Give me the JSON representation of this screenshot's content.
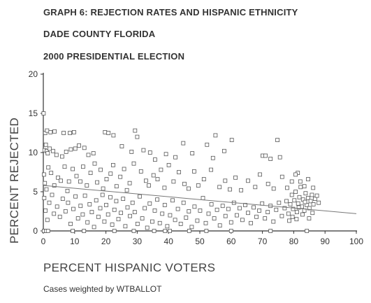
{
  "titles": {
    "line1": "GRAPH 6: REJECTION RATES AND HISPANIC ETHNICITY",
    "line2": "DADE COUNTY FLORIDA",
    "line3": "2000 PRESIDENTIAL ELECTION"
  },
  "note": "Cases weighted by WTBALLOT",
  "chart_data": {
    "type": "scatter",
    "title": "GRAPH 6: REJECTION RATES AND HISPANIC ETHNICITY",
    "xlabel": "PERCENT HISPANIC VOTERS",
    "ylabel": "PERCENT REJECTED",
    "xlim": [
      0,
      100
    ],
    "ylim": [
      0,
      20
    ],
    "x_ticks": [
      "0",
      "10",
      "20",
      "30",
      "40",
      "50",
      "60",
      "70",
      "80",
      "90",
      "100"
    ],
    "y_ticks": [
      "0",
      "5",
      "10",
      "15",
      "20"
    ],
    "grid": false,
    "marker": "open-square",
    "marker_color": "#555555",
    "fit_line": {
      "x": [
        0,
        100
      ],
      "y": [
        5.8,
        2.2
      ],
      "color": "#777777"
    },
    "points": [
      [
        0.1,
        15.0
      ],
      [
        0.6,
        12.5
      ],
      [
        1.2,
        12.8
      ],
      [
        2.3,
        12.6
      ],
      [
        3.6,
        12.7
      ],
      [
        6.5,
        12.5
      ],
      [
        8.5,
        12.5
      ],
      [
        9.8,
        12.6
      ],
      [
        0.4,
        10.3
      ],
      [
        0.8,
        11.0
      ],
      [
        1.1,
        10.2
      ],
      [
        1.4,
        9.9
      ],
      [
        2.0,
        10.5
      ],
      [
        3.1,
        10.2
      ],
      [
        4.2,
        9.7
      ],
      [
        6.0,
        9.5
      ],
      [
        7.3,
        10.1
      ],
      [
        8.8,
        10.4
      ],
      [
        10.2,
        10.5
      ],
      [
        11.4,
        10.9
      ],
      [
        13.1,
        10.6
      ],
      [
        14.4,
        9.7
      ],
      [
        16.0,
        9.9
      ],
      [
        19.7,
        12.6
      ],
      [
        20.8,
        12.5
      ],
      [
        22.4,
        12.2
      ],
      [
        25.1,
        10.8
      ],
      [
        28.2,
        10.1
      ],
      [
        29.3,
        12.8
      ],
      [
        30.0,
        12.0
      ],
      [
        32.0,
        10.3
      ],
      [
        34.1,
        10.0
      ],
      [
        35.7,
        9.1
      ],
      [
        39.2,
        9.8
      ],
      [
        42.2,
        9.4
      ],
      [
        44.7,
        11.2
      ],
      [
        47.6,
        9.9
      ],
      [
        52.3,
        11.0
      ],
      [
        54.2,
        9.3
      ],
      [
        55.0,
        12.2
      ],
      [
        57.8,
        10.2
      ],
      [
        60.2,
        11.6
      ],
      [
        70.1,
        9.6
      ],
      [
        71.0,
        9.6
      ],
      [
        72.6,
        9.2
      ],
      [
        74.8,
        11.6
      ],
      [
        75.6,
        9.4
      ],
      [
        81.3,
        7.4
      ],
      [
        0.2,
        7.2
      ],
      [
        0.5,
        6.1
      ],
      [
        1.0,
        5.3
      ],
      [
        1.6,
        8.1
      ],
      [
        2.5,
        7.4
      ],
      [
        3.5,
        5.8
      ],
      [
        4.7,
        6.8
      ],
      [
        5.6,
        6.4
      ],
      [
        6.8,
        8.2
      ],
      [
        7.7,
        5.1
      ],
      [
        8.2,
        6.3
      ],
      [
        9.4,
        7.9
      ],
      [
        10.6,
        7.0
      ],
      [
        11.8,
        6.3
      ],
      [
        12.7,
        8.2
      ],
      [
        13.9,
        5.8
      ],
      [
        15.1,
        7.4
      ],
      [
        16.4,
        8.6
      ],
      [
        17.2,
        6.2
      ],
      [
        18.3,
        7.8
      ],
      [
        19.1,
        5.4
      ],
      [
        20.2,
        6.6
      ],
      [
        21.5,
        7.3
      ],
      [
        22.3,
        8.4
      ],
      [
        23.4,
        5.7
      ],
      [
        24.6,
        6.9
      ],
      [
        25.8,
        7.9
      ],
      [
        26.7,
        5.2
      ],
      [
        27.6,
        6.1
      ],
      [
        28.9,
        8.6
      ],
      [
        31.2,
        7.6
      ],
      [
        32.8,
        6.4
      ],
      [
        33.7,
        5.8
      ],
      [
        35.2,
        7.1
      ],
      [
        36.5,
        6.6
      ],
      [
        37.6,
        7.8
      ],
      [
        38.7,
        5.5
      ],
      [
        40.1,
        8.4
      ],
      [
        41.6,
        6.3
      ],
      [
        43.3,
        7.5
      ],
      [
        45.1,
        6.0
      ],
      [
        46.4,
        5.4
      ],
      [
        48.2,
        7.6
      ],
      [
        49.5,
        5.8
      ],
      [
        51.3,
        6.6
      ],
      [
        53.6,
        7.8
      ],
      [
        56.3,
        5.6
      ],
      [
        58.1,
        6.4
      ],
      [
        59.6,
        5.3
      ],
      [
        61.4,
        6.8
      ],
      [
        63.2,
        5.2
      ],
      [
        65.4,
        6.4
      ],
      [
        67.7,
        5.6
      ],
      [
        69.2,
        7.2
      ],
      [
        71.8,
        6.0
      ],
      [
        73.6,
        5.4
      ],
      [
        76.3,
        6.9
      ],
      [
        77.9,
        5.5
      ],
      [
        79.4,
        6.3
      ],
      [
        80.6,
        7.2
      ],
      [
        82.1,
        6.3
      ],
      [
        83.4,
        5.7
      ],
      [
        84.6,
        6.6
      ],
      [
        86.2,
        5.5
      ],
      [
        0.3,
        4.2
      ],
      [
        0.7,
        2.6
      ],
      [
        1.3,
        1.4
      ],
      [
        1.9,
        3.6
      ],
      [
        2.8,
        4.6
      ],
      [
        3.4,
        2.2
      ],
      [
        4.4,
        3.1
      ],
      [
        5.3,
        1.8
      ],
      [
        6.2,
        4.1
      ],
      [
        7.1,
        2.5
      ],
      [
        7.9,
        3.6
      ],
      [
        8.7,
        0.9
      ],
      [
        9.6,
        2.8
      ],
      [
        10.3,
        4.4
      ],
      [
        11.1,
        1.6
      ],
      [
        11.9,
        3.2
      ],
      [
        12.6,
        2.1
      ],
      [
        13.3,
        4.5
      ],
      [
        14.1,
        1.1
      ],
      [
        14.8,
        3.4
      ],
      [
        15.5,
        2.4
      ],
      [
        16.2,
        0.5
      ],
      [
        16.9,
        3.9
      ],
      [
        17.6,
        1.8
      ],
      [
        18.2,
        2.9
      ],
      [
        18.9,
        4.6
      ],
      [
        19.5,
        1.2
      ],
      [
        20.1,
        3.3
      ],
      [
        20.7,
        2.1
      ],
      [
        21.4,
        4.3
      ],
      [
        22.0,
        0.8
      ],
      [
        22.7,
        2.7
      ],
      [
        23.3,
        3.8
      ],
      [
        24.0,
        1.5
      ],
      [
        24.8,
        2.3
      ],
      [
        25.5,
        4.1
      ],
      [
        26.2,
        0.6
      ],
      [
        26.9,
        3.0
      ],
      [
        27.7,
        1.9
      ],
      [
        28.5,
        3.6
      ],
      [
        29.2,
        2.4
      ],
      [
        30.1,
        0.9
      ],
      [
        30.8,
        4.4
      ],
      [
        31.6,
        1.6
      ],
      [
        32.4,
        2.9
      ],
      [
        33.2,
        0.4
      ],
      [
        34.0,
        3.5
      ],
      [
        34.8,
        1.2
      ],
      [
        35.6,
        2.6
      ],
      [
        36.4,
        4.0
      ],
      [
        37.2,
        1.0
      ],
      [
        38.0,
        2.2
      ],
      [
        38.8,
        3.3
      ],
      [
        39.6,
        0.6
      ],
      [
        40.5,
        2.0
      ],
      [
        41.3,
        3.9
      ],
      [
        42.1,
        1.4
      ],
      [
        43.0,
        2.8
      ],
      [
        43.9,
        0.9
      ],
      [
        44.8,
        3.6
      ],
      [
        45.6,
        1.7
      ],
      [
        46.5,
        2.5
      ],
      [
        47.4,
        0.5
      ],
      [
        48.3,
        3.1
      ],
      [
        49.2,
        1.3
      ],
      [
        50.1,
        2.6
      ],
      [
        51.0,
        4.2
      ],
      [
        51.9,
        1.0
      ],
      [
        52.8,
        2.2
      ],
      [
        53.7,
        3.4
      ],
      [
        54.6,
        1.6
      ],
      [
        55.5,
        2.7
      ],
      [
        56.4,
        0.7
      ],
      [
        57.3,
        3.2
      ],
      [
        58.2,
        1.9
      ],
      [
        59.1,
        2.8
      ],
      [
        60.0,
        1.1
      ],
      [
        60.9,
        3.6
      ],
      [
        61.8,
        2.0
      ],
      [
        62.7,
        2.9
      ],
      [
        63.6,
        1.4
      ],
      [
        64.5,
        3.3
      ],
      [
        65.4,
        2.3
      ],
      [
        66.3,
        1.0
      ],
      [
        67.2,
        3.0
      ],
      [
        68.1,
        1.8
      ],
      [
        69.0,
        2.6
      ],
      [
        69.9,
        3.5
      ],
      [
        70.8,
        1.6
      ],
      [
        71.7,
        2.4
      ],
      [
        72.6,
        3.2
      ],
      [
        73.5,
        1.2
      ],
      [
        74.4,
        2.7
      ],
      [
        75.3,
        3.6
      ],
      [
        76.2,
        1.9
      ],
      [
        77.1,
        2.9
      ],
      [
        77.7,
        3.8
      ],
      [
        78.3,
        2.2
      ],
      [
        78.9,
        3.4
      ],
      [
        79.4,
        4.6
      ],
      [
        79.8,
        2.8
      ],
      [
        80.2,
        3.9
      ],
      [
        80.6,
        5.0
      ],
      [
        81.0,
        2.4
      ],
      [
        81.4,
        3.5
      ],
      [
        81.8,
        4.3
      ],
      [
        82.2,
        5.6
      ],
      [
        82.6,
        3.1
      ],
      [
        83.0,
        4.0
      ],
      [
        83.4,
        2.6
      ],
      [
        83.8,
        4.8
      ],
      [
        84.2,
        3.3
      ],
      [
        84.6,
        4.2
      ],
      [
        85.0,
        2.9
      ],
      [
        85.4,
        3.8
      ],
      [
        85.8,
        4.6
      ],
      [
        86.3,
        3.4
      ],
      [
        86.8,
        4.1
      ],
      [
        87.4,
        4.5
      ],
      [
        88.0,
        3.6
      ],
      [
        79.6,
        1.8
      ],
      [
        80.9,
        1.5
      ],
      [
        82.8,
        2.1
      ],
      [
        84.9,
        1.6
      ],
      [
        86.0,
        2.3
      ],
      [
        78.6,
        1.3
      ],
      [
        81.6,
        3.0
      ],
      [
        83.6,
        3.7
      ],
      [
        0.2,
        0.0
      ],
      [
        0.9,
        0.0
      ],
      [
        1.5,
        0.0
      ],
      [
        9.4,
        0.0
      ],
      [
        13.0,
        0.0
      ],
      [
        22.7,
        0.0
      ],
      [
        28.9,
        0.0
      ],
      [
        35.4,
        0.0
      ],
      [
        38.9,
        0.0
      ],
      [
        40.4,
        0.0
      ],
      [
        46.6,
        0.0
      ],
      [
        52.1,
        0.0
      ],
      [
        60.0,
        0.0
      ],
      [
        72.6,
        0.0
      ],
      [
        84.2,
        0.0
      ]
    ]
  }
}
